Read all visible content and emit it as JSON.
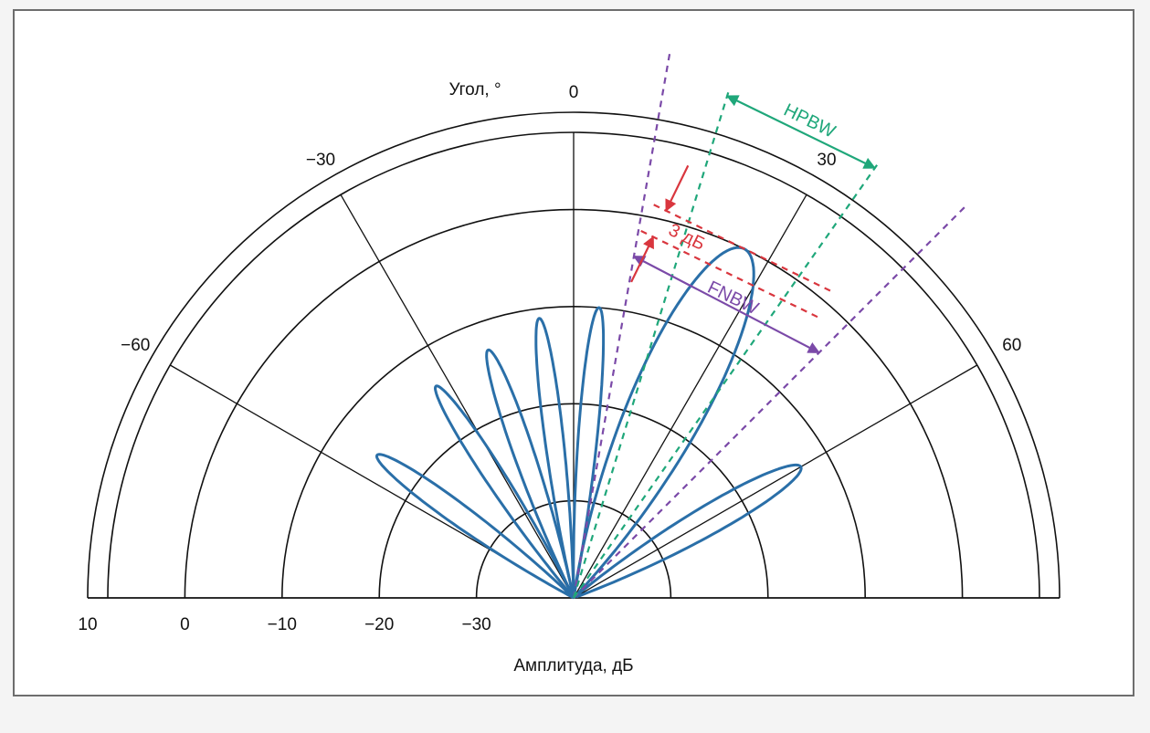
{
  "chart_data": {
    "type": "polar",
    "angle_label": "Угол, °",
    "amplitude_label": "Амплитуда, дБ",
    "angle_ticks": [
      -60,
      -30,
      0,
      30,
      60
    ],
    "amplitude_ticks": [
      10,
      0,
      -10,
      -20,
      -30
    ],
    "amplitude_range": [
      -40,
      10
    ],
    "angle_range": [
      -90,
      90
    ],
    "series": [
      {
        "type": "lobes",
        "color": "#2a6fa8",
        "lobes": [
          {
            "center_deg": 26,
            "half_width_deg": 18,
            "peak_db": 0
          },
          {
            "center_deg": 5,
            "half_width_deg": 6,
            "peak_db": -10
          },
          {
            "center_deg": -7,
            "half_width_deg": 6,
            "peak_db": -11
          },
          {
            "center_deg": -19,
            "half_width_deg": 7,
            "peak_db": -13
          },
          {
            "center_deg": -33,
            "half_width_deg": 7,
            "peak_db": -14
          },
          {
            "center_deg": -54,
            "half_width_deg": 8,
            "peak_db": -15
          },
          {
            "center_deg": 60,
            "half_width_deg": 10,
            "peak_db": -13
          }
        ]
      }
    ],
    "annotations": {
      "hpbw": {
        "text": "HPBW",
        "color": "#1fa77a",
        "angles_deg": [
          17,
          35
        ]
      },
      "fnbw": {
        "text": "FNBW",
        "color": "#7b4aa8",
        "angles_deg": [
          10,
          45
        ]
      },
      "three_db": {
        "text": "3 дБ",
        "color": "#d9363e",
        "levels_db": [
          0,
          -3
        ]
      }
    }
  }
}
